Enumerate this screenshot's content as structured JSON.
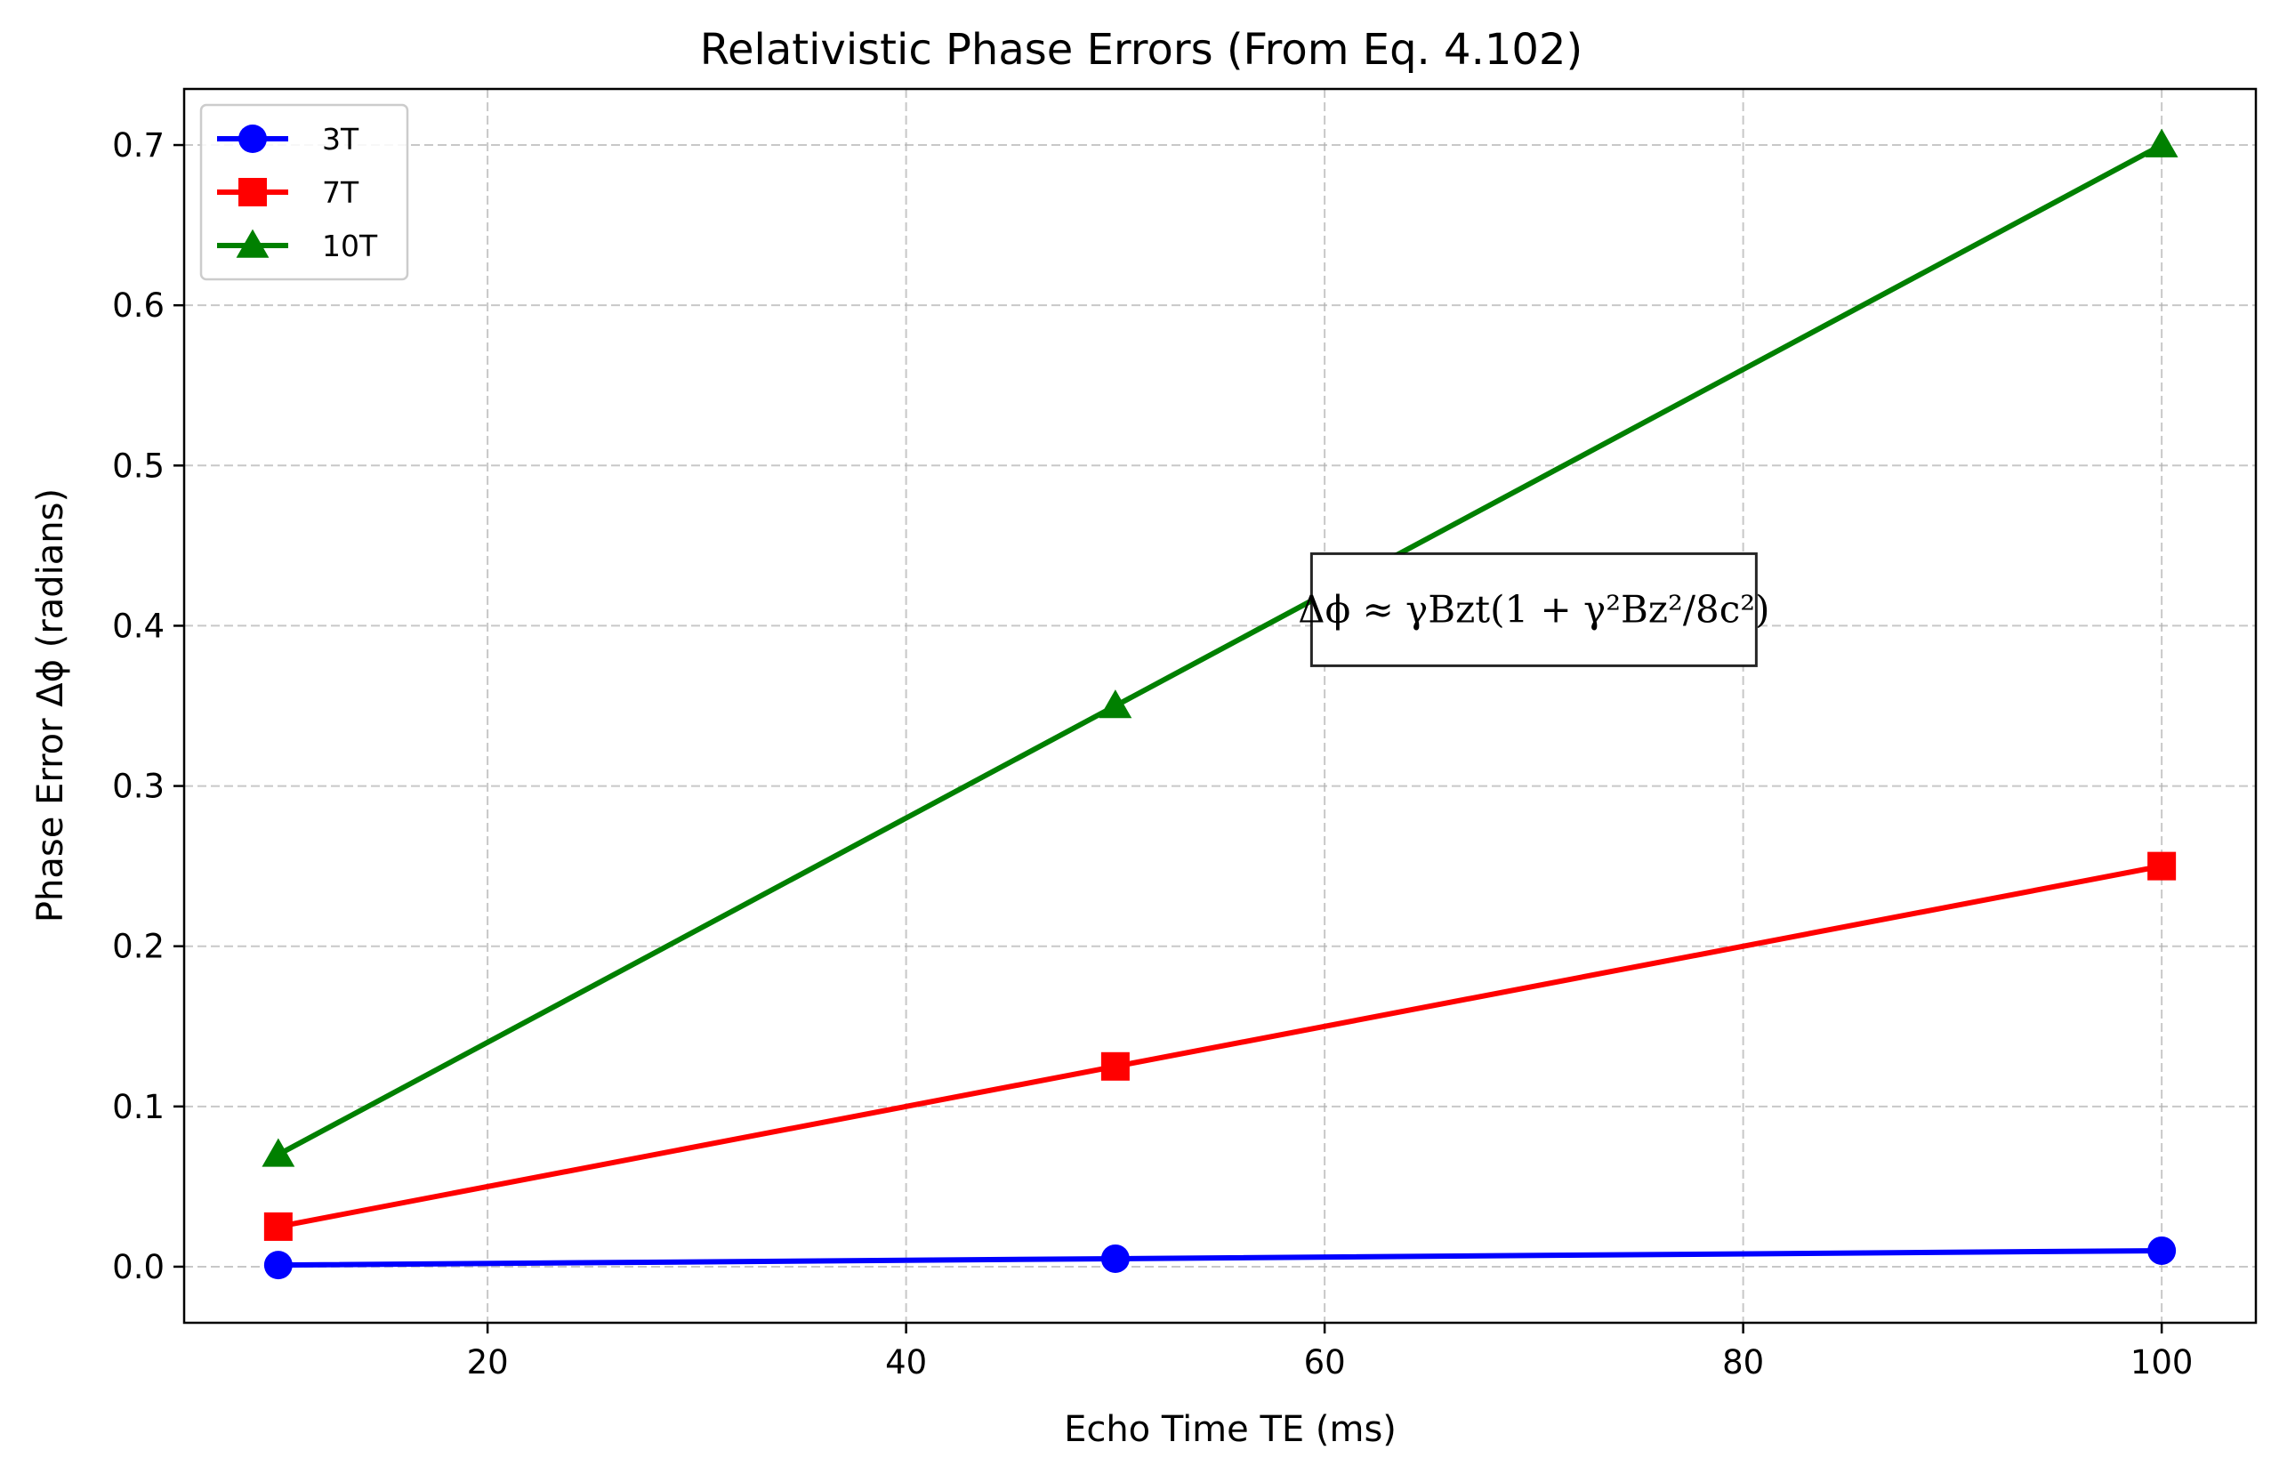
{
  "chart_data": {
    "type": "line",
    "title": "Relativistic Phase Errors (From Eq. 4.102)",
    "xlabel": "Echo Time TE (ms)",
    "ylabel": "Phase Error Δϕ (radians)",
    "xlim": [
      5.5,
      104.5
    ],
    "ylim": [
      -0.035,
      0.735
    ],
    "xticks": [
      20,
      40,
      60,
      80,
      100
    ],
    "yticks": [
      0.0,
      0.1,
      0.2,
      0.3,
      0.4,
      0.5,
      0.6,
      0.7
    ],
    "xtick_labels": [
      "20",
      "40",
      "60",
      "80",
      "100"
    ],
    "ytick_labels": [
      "0.0",
      "0.1",
      "0.2",
      "0.3",
      "0.4",
      "0.5",
      "0.6",
      "0.7"
    ],
    "grid": true,
    "legend_position": "top-left",
    "x": [
      10,
      50,
      100
    ],
    "series": [
      {
        "name": "3T",
        "values": [
          0.001,
          0.005,
          0.01
        ],
        "color": "#0000ff",
        "marker": "circle"
      },
      {
        "name": "7T",
        "values": [
          0.025,
          0.125,
          0.25
        ],
        "color": "#ff0000",
        "marker": "square"
      },
      {
        "name": "10T",
        "values": [
          0.07,
          0.35,
          0.7
        ],
        "color": "#008000",
        "marker": "triangle"
      }
    ],
    "annotation": {
      "text": "Δϕ ≈ γBzt(1 + γ²Bz²/8c²)",
      "x": 70,
      "y": 0.41
    }
  }
}
